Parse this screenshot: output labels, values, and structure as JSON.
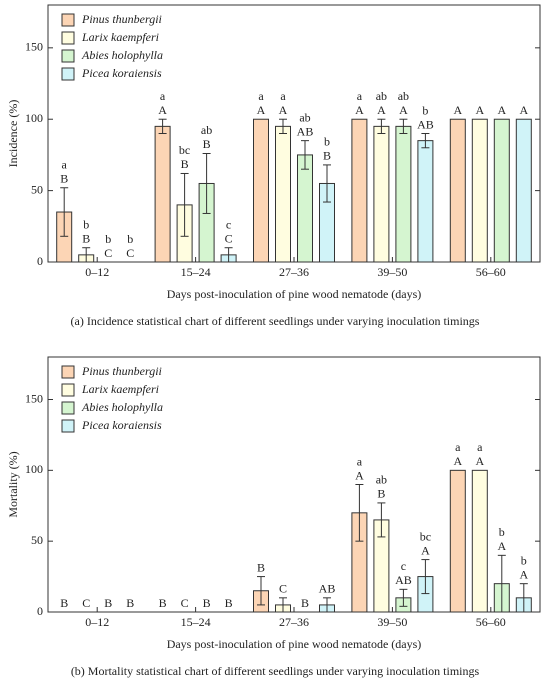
{
  "chart_data": [
    {
      "type": "bar",
      "y_label": "Incidence (%)",
      "x_label": "Days post-inoculation of pine wood nematode (days)",
      "caption": "(a) Incidence statistical chart of different seedlings under varying inoculation timings",
      "categories": [
        "0–12",
        "15–24",
        "27–36",
        "39–50",
        "56–60"
      ],
      "ylim": [
        0,
        180
      ],
      "yticks": [
        0,
        50,
        100,
        150
      ],
      "legend": "upper left",
      "series": [
        {
          "name": "Pinus thunbergii",
          "color": "#fcd5b5",
          "values": [
            35,
            95,
            100,
            100,
            100
          ],
          "errors": [
            17,
            5,
            0,
            0,
            0
          ],
          "letters_lower": [
            "a",
            "a",
            "a",
            "a",
            null
          ],
          "letters_upper": [
            "B",
            "A",
            "A",
            "A",
            "A"
          ]
        },
        {
          "name": "Larix kaempferi",
          "color": "#fffde0",
          "values": [
            5,
            40,
            95,
            95,
            100
          ],
          "errors": [
            5,
            22,
            5,
            5,
            0
          ],
          "letters_lower": [
            "b",
            "bc",
            "a",
            "ab",
            null
          ],
          "letters_upper": [
            "B",
            "B",
            "A",
            "A",
            "A"
          ]
        },
        {
          "name": "Abies holophylla",
          "color": "#d5f5d0",
          "values": [
            0,
            55,
            75,
            95,
            100
          ],
          "errors": [
            0,
            21,
            10,
            5,
            0
          ],
          "letters_lower": [
            "b",
            "ab",
            "ab",
            "ab",
            null
          ],
          "letters_upper": [
            "C",
            "B",
            "AB",
            "A",
            "A"
          ]
        },
        {
          "name": "Picea koraiensis",
          "color": "#d0f3f8",
          "values": [
            0,
            5,
            55,
            85,
            100
          ],
          "errors": [
            0,
            5,
            13,
            5,
            0
          ],
          "letters_lower": [
            "b",
            "c",
            "b",
            "b",
            null
          ],
          "letters_upper": [
            "C",
            "C",
            "B",
            "AB",
            "A"
          ]
        }
      ]
    },
    {
      "type": "bar",
      "y_label": "Mortality (%)",
      "x_label": "Days post-inoculation of pine wood nematode (days)",
      "caption": "(b) Mortality statistical chart of different seedlings under varying inoculation timings",
      "categories": [
        "0–12",
        "15–24",
        "27–36",
        "39–50",
        "56–60"
      ],
      "ylim": [
        0,
        180
      ],
      "yticks": [
        0,
        50,
        100,
        150
      ],
      "legend": "upper left",
      "series": [
        {
          "name": "Pinus thunbergii",
          "color": "#fcd5b5",
          "values": [
            0,
            0,
            15,
            70,
            100
          ],
          "errors": [
            0,
            0,
            10,
            20,
            0
          ],
          "letters_lower": [
            null,
            null,
            null,
            "a",
            "a"
          ],
          "letters_upper": [
            "B",
            "B",
            "B",
            "A",
            "A"
          ]
        },
        {
          "name": "Larix kaempferi",
          "color": "#fffde0",
          "values": [
            0,
            0,
            5,
            65,
            100
          ],
          "errors": [
            0,
            0,
            5,
            12,
            0
          ],
          "letters_lower": [
            null,
            null,
            null,
            "ab",
            "a"
          ],
          "letters_upper": [
            "C",
            "C",
            "C",
            "B",
            "A"
          ]
        },
        {
          "name": "Abies holophylla",
          "color": "#d5f5d0",
          "values": [
            0,
            0,
            0,
            10,
            20
          ],
          "errors": [
            0,
            0,
            0,
            6,
            20
          ],
          "letters_lower": [
            null,
            null,
            null,
            "c",
            "b"
          ],
          "letters_upper": [
            "B",
            "B",
            "B",
            "AB",
            "A"
          ]
        },
        {
          "name": "Picea koraiensis",
          "color": "#d0f3f8",
          "values": [
            0,
            0,
            5,
            25,
            10
          ],
          "errors": [
            0,
            0,
            5,
            12,
            10
          ],
          "letters_lower": [
            null,
            null,
            null,
            "bc",
            "b"
          ],
          "letters_upper": [
            "B",
            "B",
            "AB",
            "A",
            "A"
          ]
        }
      ]
    }
  ]
}
